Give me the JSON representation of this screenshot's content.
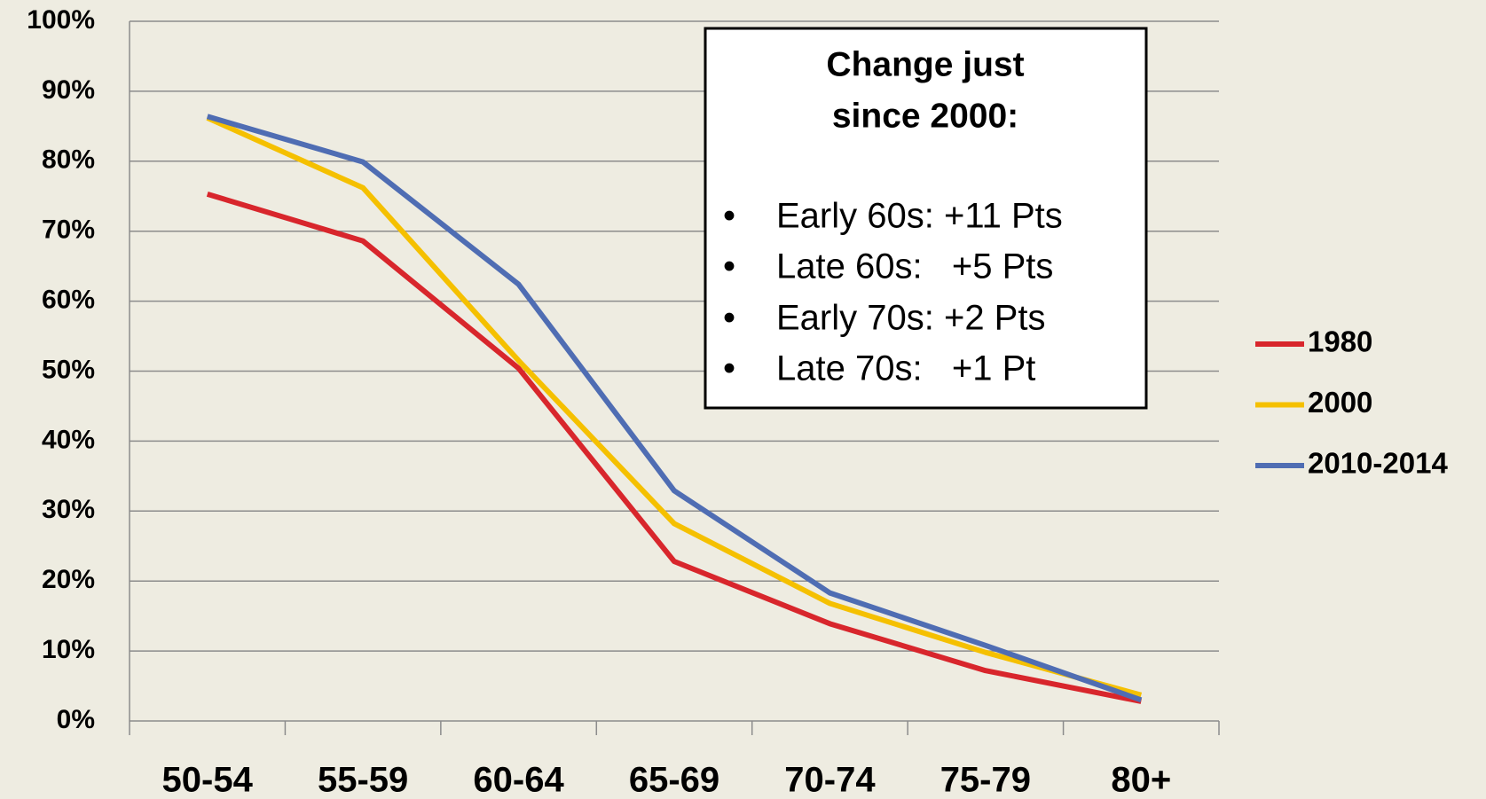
{
  "chart_data": {
    "type": "line",
    "categories": [
      "50-54",
      "55-59",
      "60-64",
      "65-69",
      "70-74",
      "75-79",
      "80+"
    ],
    "series": [
      {
        "name": "1980",
        "color": "#d8262c",
        "values": [
          75.3,
          68.6,
          50.4,
          22.8,
          13.9,
          7.2,
          2.8
        ]
      },
      {
        "name": "2000",
        "color": "#f5c000",
        "values": [
          86.2,
          76.2,
          51.5,
          28.2,
          16.8,
          9.8,
          3.7
        ]
      },
      {
        "name": "2010-2014",
        "color": "#4f6db3",
        "values": [
          86.4,
          79.9,
          62.4,
          32.9,
          18.3,
          10.8,
          3.0
        ]
      }
    ],
    "ylim": [
      0,
      100
    ],
    "yticks": [
      {
        "value": 0,
        "label": "0%"
      },
      {
        "value": 10,
        "label": "10%"
      },
      {
        "value": 20,
        "label": "20%"
      },
      {
        "value": 30,
        "label": "30%"
      },
      {
        "value": 40,
        "label": "40%"
      },
      {
        "value": 50,
        "label": "50%"
      },
      {
        "value": 60,
        "label": "60%"
      },
      {
        "value": 70,
        "label": "70%"
      },
      {
        "value": 80,
        "label": "80%"
      },
      {
        "value": 90,
        "label": "90%"
      },
      {
        "value": 100,
        "label": "100%"
      }
    ],
    "grid": true,
    "legend": "right",
    "annotation": {
      "title": [
        "Change just",
        "since 2000:"
      ],
      "items": [
        "Early 60s: +11 Pts",
        "Late 60s:   +5 Pts",
        "Early 70s: +2 Pts",
        "Late 70s:   +1 Pt"
      ]
    }
  }
}
